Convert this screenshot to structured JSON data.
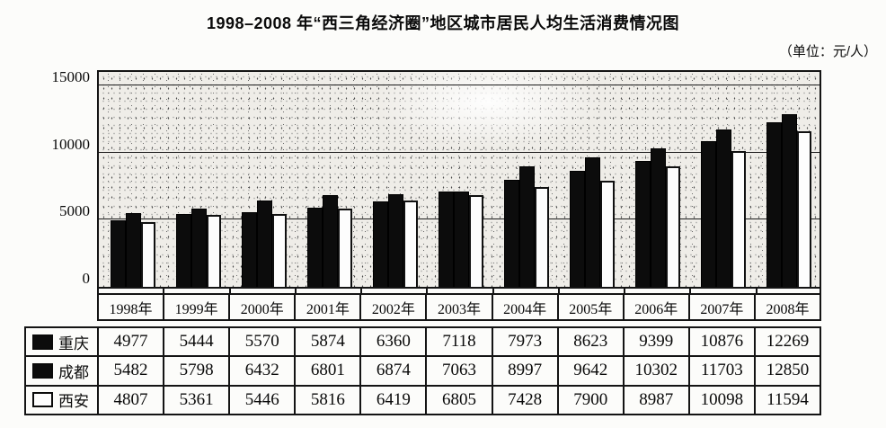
{
  "title": "1998–2008 年“西三角经济圈”地区城市居民人均生活消费情况图",
  "unit_label": "（单位：元/人）",
  "chart_data": {
    "type": "bar",
    "title": "1998–2008 年“西三角经济圈”地区城市居民人均生活消费情况图",
    "unit": "元/人",
    "categories": [
      "1998年",
      "1999年",
      "2000年",
      "2001年",
      "2002年",
      "2003年",
      "2004年",
      "2005年",
      "2006年",
      "2007年",
      "2008年"
    ],
    "series": [
      {
        "id": "chongqing",
        "name": "重庆",
        "fill": "black",
        "color": "#0c0c0c",
        "values": [
          4977,
          5444,
          5570,
          5874,
          6360,
          7118,
          7973,
          8623,
          9399,
          10876,
          12269
        ]
      },
      {
        "id": "chengdu",
        "name": "成都",
        "fill": "black",
        "color": "#0c0c0c",
        "values": [
          5482,
          5798,
          6432,
          6801,
          6874,
          7063,
          8997,
          9642,
          10302,
          11703,
          12850
        ]
      },
      {
        "id": "xian",
        "name": "西安",
        "fill": "white",
        "color": "#ffffff",
        "values": [
          4807,
          5361,
          5446,
          5816,
          6419,
          6805,
          7428,
          7900,
          8987,
          10098,
          11594
        ]
      }
    ],
    "xlabel": "",
    "ylabel": "",
    "ylim": [
      0,
      16000
    ],
    "yticks": [
      0,
      5000,
      10000,
      15000
    ],
    "grid": true,
    "plot_background": "#efede8",
    "legend_position": "table-left"
  }
}
